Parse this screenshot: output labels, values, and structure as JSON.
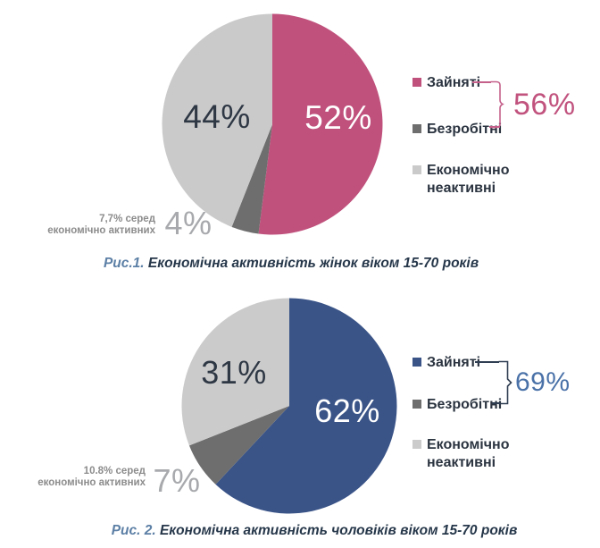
{
  "chart_data": [
    {
      "type": "pie",
      "title": "Рис.1. Економічна активність жінок віком 15-70 років",
      "labels": [
        "Зайняті",
        "Безробітні",
        "Економічно неактивні"
      ],
      "values": [
        52,
        4,
        44
      ],
      "unit": "%",
      "colors": [
        "#c0517c",
        "#6e6e6e",
        "#cacaca"
      ],
      "slice_labels": [
        "52%",
        "4%",
        "44%"
      ],
      "layout": "starts at 12 o'clock, clockwise",
      "annotations": {
        "economically_active_total": "56%",
        "unemployment_among_active": "7,7% серед економічно активних"
      }
    },
    {
      "type": "pie",
      "title": "Рис. 2. Економічна активність чоловіків віком 15-70 років",
      "labels": [
        "Зайняті",
        "Безробітні",
        "Економічно неактивні"
      ],
      "values": [
        62,
        7,
        31
      ],
      "unit": "%",
      "colors": [
        "#3a5488",
        "#6e6e6e",
        "#cbcbcb"
      ],
      "slice_labels": [
        "62%",
        "7%",
        "31%"
      ],
      "layout": "starts at 12 o'clock, clockwise",
      "annotations": {
        "economically_active_total": "69%",
        "unemployment_among_active": "10.8% серед економічно активних"
      }
    }
  ],
  "charts": [
    {
      "sidenote": {
        "line1": "7,7% серед",
        "line2": "економічно активних"
      },
      "active_total": "56%",
      "accent_color": "#c1537e",
      "brace_color": "#c4608a",
      "caption": {
        "prefix": "Рис.1.",
        "text": " Економічна активність жінок віком 15-70 років"
      }
    },
    {
      "sidenote": {
        "line1": "10.8% серед",
        "line2": "економічно активних"
      },
      "active_total": "69%",
      "accent_color": "#4a72a8",
      "brace_color": "#2f3e52",
      "caption": {
        "prefix": "Рис. 2.",
        "text": " Економічна активність чоловіків віком 15-70 років"
      }
    }
  ]
}
